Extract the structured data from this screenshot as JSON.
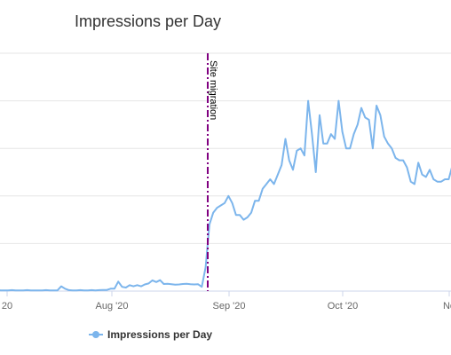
{
  "chart_data": {
    "type": "line",
    "title": "Impressions per Day",
    "xlabel": "",
    "ylabel": "",
    "x_tick_labels": [
      "20",
      "Aug '20",
      "Sep '20",
      "Oct '20",
      "No"
    ],
    "series": [
      {
        "name": "Impressions per Day",
        "color": "#7cb5ec",
        "values": [
          0.3,
          0.4,
          0.3,
          0.3,
          0.3,
          0.4,
          0.3,
          0.3,
          0.3,
          0.4,
          0.3,
          0.3,
          0.3,
          0.3,
          0.4,
          0.3,
          0.3,
          0.3,
          2.0,
          1.0,
          0.4,
          0.3,
          0.3,
          0.4,
          0.3,
          0.3,
          0.4,
          0.3,
          0.4,
          0.5,
          0.5,
          1.0,
          1.0,
          4.0,
          1.8,
          1.5,
          2.5,
          2.0,
          2.5,
          2.0,
          2.8,
          3.2,
          4.5,
          3.8,
          4.6,
          3.0,
          3.1,
          2.9,
          2.7,
          2.8,
          3.0,
          3.1,
          2.9,
          2.8,
          2.9,
          1.8,
          10,
          28,
          33,
          35,
          36,
          37,
          40,
          37,
          32,
          32,
          30,
          31,
          33,
          38,
          38,
          43,
          45,
          47,
          45,
          49,
          53,
          64,
          55,
          51,
          59,
          60,
          57,
          80,
          66,
          50,
          74,
          62,
          62,
          66,
          64,
          80,
          67,
          60,
          60,
          66,
          70,
          77,
          73,
          72,
          60,
          78,
          74,
          65,
          62,
          60,
          56,
          55,
          55,
          52,
          46,
          45,
          54,
          49,
          48,
          51,
          47,
          46,
          46,
          47,
          47,
          53,
          53
        ]
      }
    ],
    "annotation": {
      "label": "Site migration",
      "style": "dash-dot",
      "color": "#800080"
    },
    "legend": {
      "position": "bottom-left"
    },
    "grid": "horizontal",
    "ylim": [
      0,
      100
    ]
  }
}
